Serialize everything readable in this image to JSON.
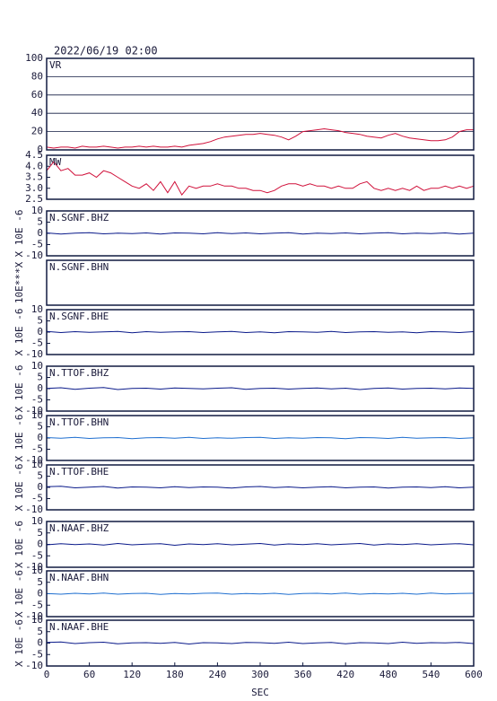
{
  "chart_data": [
    {
      "type": "line",
      "title": "2022/06/19 02:00",
      "label": "VR",
      "grid": true,
      "xlim": [
        0,
        600
      ],
      "ylim": [
        0,
        100
      ],
      "yticks": [
        0,
        20,
        40,
        60,
        80,
        100
      ],
      "x": [
        0,
        10,
        20,
        30,
        40,
        50,
        60,
        70,
        80,
        90,
        100,
        110,
        120,
        130,
        140,
        150,
        160,
        170,
        180,
        190,
        200,
        210,
        220,
        230,
        240,
        250,
        260,
        270,
        280,
        290,
        300,
        310,
        320,
        330,
        340,
        350,
        360,
        370,
        380,
        390,
        400,
        410,
        420,
        430,
        440,
        450,
        460,
        470,
        480,
        490,
        500,
        510,
        520,
        530,
        540,
        550,
        560,
        570,
        580,
        590,
        600
      ],
      "series": [
        {
          "color": "#d0103a",
          "values": [
            3,
            2,
            3,
            3,
            2,
            4,
            3,
            3,
            4,
            3,
            2,
            3,
            3,
            4,
            3,
            4,
            3,
            3,
            4,
            3,
            5,
            6,
            7,
            9,
            12,
            14,
            15,
            16,
            17,
            17,
            18,
            17,
            16,
            14,
            11,
            15,
            20,
            21,
            22,
            23,
            22,
            21,
            19,
            18,
            17,
            15,
            14,
            13,
            16,
            18,
            15,
            13,
            12,
            11,
            10,
            10,
            11,
            14,
            20,
            22,
            22
          ]
        }
      ]
    },
    {
      "type": "line",
      "label": "MW",
      "xlim": [
        0,
        600
      ],
      "ylim": [
        2.5,
        4.5
      ],
      "yticks": [
        {
          "value": 2.5,
          "label": "2.5"
        },
        {
          "value": 3,
          "label": "3.0"
        },
        {
          "value": 3.5,
          "label": "3.5"
        },
        {
          "value": 4,
          "label": "4.0"
        },
        {
          "value": 4.5,
          "label": "4.5"
        }
      ],
      "x": [
        0,
        10,
        20,
        30,
        40,
        50,
        60,
        70,
        80,
        90,
        100,
        110,
        120,
        130,
        140,
        150,
        160,
        170,
        180,
        190,
        200,
        210,
        220,
        230,
        240,
        250,
        260,
        270,
        280,
        290,
        300,
        310,
        320,
        330,
        340,
        350,
        360,
        370,
        380,
        390,
        400,
        410,
        420,
        430,
        440,
        450,
        460,
        470,
        480,
        490,
        500,
        510,
        520,
        530,
        540,
        550,
        560,
        570,
        580,
        590,
        600
      ],
      "series": [
        {
          "color": "#d0103a",
          "values": [
            3.8,
            4.2,
            3.8,
            3.9,
            3.6,
            3.6,
            3.7,
            3.5,
            3.8,
            3.7,
            3.5,
            3.3,
            3.1,
            3.0,
            3.2,
            2.9,
            3.3,
            2.8,
            3.3,
            2.7,
            3.1,
            3.0,
            3.1,
            3.1,
            3.2,
            3.1,
            3.1,
            3.0,
            3.0,
            2.9,
            2.9,
            2.8,
            2.9,
            3.1,
            3.2,
            3.2,
            3.1,
            3.2,
            3.1,
            3.1,
            3.0,
            3.1,
            3.0,
            3.0,
            3.2,
            3.3,
            3.0,
            2.9,
            3.0,
            2.9,
            3.0,
            2.9,
            3.1,
            2.9,
            3.0,
            3.0,
            3.1,
            3.0,
            3.1,
            3.0,
            3.1
          ]
        }
      ]
    },
    {
      "type": "line",
      "label": "N.SGNF.BHZ",
      "ylabel": "X 10E -6",
      "xlim": [
        0,
        600
      ],
      "ylim": [
        -10,
        10
      ],
      "yticks": [
        -10,
        -5,
        0,
        5,
        10
      ],
      "x": [
        0,
        20,
        40,
        60,
        80,
        100,
        120,
        140,
        160,
        180,
        200,
        220,
        240,
        260,
        280,
        300,
        320,
        340,
        360,
        380,
        400,
        420,
        440,
        460,
        480,
        500,
        520,
        540,
        560,
        580,
        600
      ],
      "series": [
        {
          "color": "#0a1a8a",
          "values": [
            0.2,
            -0.3,
            0.1,
            0.3,
            -0.2,
            0.1,
            -0.1,
            0.2,
            -0.3,
            0.2,
            0.1,
            -0.2,
            0.3,
            -0.1,
            0.2,
            -0.2,
            0.1,
            0.3,
            -0.3,
            0.1,
            -0.1,
            0.2,
            -0.2,
            0.1,
            0.3,
            -0.2,
            0.1,
            -0.1,
            0.2,
            -0.3,
            0.1
          ]
        }
      ]
    },
    {
      "type": "line",
      "label": "N.SGNF.BHN",
      "ylabel": "10E***X",
      "xlim": [
        0,
        600
      ],
      "x": [],
      "series": [
        {
          "color": "#1f6fd0",
          "values": []
        }
      ]
    },
    {
      "type": "line",
      "label": "N.SGNF.BHE",
      "ylabel": "X 10E -6",
      "xlim": [
        0,
        600
      ],
      "ylim": [
        -10,
        10
      ],
      "yticks": [
        -10,
        -5,
        0,
        5,
        10
      ],
      "x": [
        0,
        20,
        40,
        60,
        80,
        100,
        120,
        140,
        160,
        180,
        200,
        220,
        240,
        260,
        280,
        300,
        320,
        340,
        360,
        380,
        400,
        420,
        440,
        460,
        480,
        500,
        520,
        540,
        560,
        580,
        600
      ],
      "series": [
        {
          "color": "#0a1a8a",
          "values": [
            0.3,
            -0.2,
            0.2,
            -0.1,
            0.1,
            0.3,
            -0.3,
            0.2,
            -0.1,
            0.1,
            0.2,
            -0.2,
            0.1,
            0.3,
            -0.2,
            0.1,
            -0.3,
            0.2,
            0.1,
            -0.1,
            0.3,
            -0.2,
            0.1,
            0.2,
            -0.1,
            0.1,
            -0.3,
            0.2,
            0.1,
            -0.2,
            0.2
          ]
        }
      ]
    },
    {
      "type": "line",
      "label": "N.TTOF.BHZ",
      "ylabel": "X 10E -6",
      "xlim": [
        0,
        600
      ],
      "ylim": [
        -10,
        10
      ],
      "yticks": [
        -10,
        -5,
        0,
        5,
        10
      ],
      "x": [
        0,
        20,
        40,
        60,
        80,
        100,
        120,
        140,
        160,
        180,
        200,
        220,
        240,
        260,
        280,
        300,
        320,
        340,
        360,
        380,
        400,
        420,
        440,
        460,
        480,
        500,
        520,
        540,
        560,
        580,
        600
      ],
      "series": [
        {
          "color": "#0a1a8a",
          "values": [
            0.1,
            0.4,
            -0.3,
            0.2,
            0.5,
            -0.4,
            0.1,
            0.2,
            -0.2,
            0.3,
            0.1,
            -0.1,
            0.2,
            0.4,
            -0.3,
            0.1,
            0.2,
            -0.2,
            0.1,
            0.3,
            -0.1,
            0.2,
            -0.4,
            0.1,
            0.3,
            -0.2,
            0.1,
            0.2,
            -0.1,
            0.3,
            0.1
          ]
        }
      ]
    },
    {
      "type": "line",
      "label": "N.TTOF.BHN",
      "ylabel": "X 10E -6",
      "xlim": [
        0,
        600
      ],
      "ylim": [
        -10,
        10
      ],
      "yticks": [
        -10,
        -5,
        0,
        5,
        10
      ],
      "x": [
        0,
        20,
        40,
        60,
        80,
        100,
        120,
        140,
        160,
        180,
        200,
        220,
        240,
        260,
        280,
        300,
        320,
        340,
        360,
        380,
        400,
        420,
        440,
        460,
        480,
        500,
        520,
        540,
        560,
        580,
        600
      ],
      "series": [
        {
          "color": "#1f6fd0",
          "values": [
            0.2,
            -0.1,
            0.3,
            -0.2,
            0.1,
            0.2,
            -0.3,
            0.1,
            0.2,
            -0.1,
            0.3,
            -0.2,
            0.1,
            -0.1,
            0.2,
            0.3,
            -0.2,
            0.1,
            -0.1,
            0.2,
            0.1,
            -0.3,
            0.2,
            0.1,
            -0.2,
            0.3,
            -0.1,
            0.1,
            0.2,
            -0.2,
            0.1
          ]
        }
      ]
    },
    {
      "type": "line",
      "label": "N.TTOF.BHE",
      "ylabel": "X 10E -6",
      "xlim": [
        0,
        600
      ],
      "ylim": [
        -10,
        10
      ],
      "yticks": [
        -10,
        -5,
        0,
        5,
        10
      ],
      "x": [
        0,
        20,
        40,
        60,
        80,
        100,
        120,
        140,
        160,
        180,
        200,
        220,
        240,
        260,
        280,
        300,
        320,
        340,
        360,
        380,
        400,
        420,
        440,
        460,
        480,
        500,
        520,
        540,
        560,
        580,
        600
      ],
      "series": [
        {
          "color": "#0a1a8a",
          "values": [
            0.3,
            0.5,
            -0.2,
            0.1,
            0.4,
            -0.3,
            0.2,
            0.1,
            -0.2,
            0.3,
            -0.1,
            0.2,
            0.1,
            -0.3,
            0.2,
            0.4,
            -0.1,
            0.2,
            -0.2,
            0.1,
            0.3,
            -0.2,
            0.1,
            0.2,
            -0.3,
            0.1,
            0.2,
            -0.1,
            0.3,
            -0.2,
            0.1
          ]
        }
      ]
    },
    {
      "type": "line",
      "label": "N.NAAF.BHZ",
      "ylabel": "X 10E -6",
      "xlim": [
        0,
        600
      ],
      "ylim": [
        -10,
        10
      ],
      "yticks": [
        -10,
        -5,
        0,
        5,
        10
      ],
      "x": [
        0,
        20,
        40,
        60,
        80,
        100,
        120,
        140,
        160,
        180,
        200,
        220,
        240,
        260,
        280,
        300,
        320,
        340,
        360,
        380,
        400,
        420,
        440,
        460,
        480,
        500,
        520,
        540,
        560,
        580,
        600
      ],
      "series": [
        {
          "color": "#0a1a8a",
          "values": [
            -0.2,
            0.3,
            -0.1,
            0.2,
            -0.3,
            0.4,
            -0.2,
            0.1,
            0.3,
            -0.4,
            0.2,
            -0.1,
            0.3,
            -0.2,
            0.1,
            0.4,
            -0.3,
            0.2,
            -0.1,
            0.3,
            -0.2,
            0.1,
            0.4,
            -0.3,
            0.2,
            -0.1,
            0.3,
            -0.2,
            0.1,
            0.3,
            -0.2
          ]
        }
      ]
    },
    {
      "type": "line",
      "label": "N.NAAF.BHN",
      "ylabel": "X 10E -6",
      "xlim": [
        0,
        600
      ],
      "ylim": [
        -10,
        10
      ],
      "yticks": [
        -10,
        -5,
        0,
        5,
        10
      ],
      "x": [
        0,
        20,
        40,
        60,
        80,
        100,
        120,
        140,
        160,
        180,
        200,
        220,
        240,
        260,
        280,
        300,
        320,
        340,
        360,
        380,
        400,
        420,
        440,
        460,
        480,
        500,
        520,
        540,
        560,
        580,
        600
      ],
      "series": [
        {
          "color": "#1f6fd0",
          "values": [
            0.1,
            -0.2,
            0.2,
            -0.1,
            0.3,
            -0.2,
            0.1,
            0.2,
            -0.3,
            0.1,
            -0.1,
            0.2,
            0.3,
            -0.2,
            0.1,
            -0.1,
            0.2,
            -0.3,
            0.1,
            0.2,
            -0.1,
            0.3,
            -0.2,
            0.1,
            -0.1,
            0.2,
            -0.2,
            0.3,
            -0.1,
            0.1,
            0.2
          ]
        }
      ]
    },
    {
      "type": "line",
      "label": "N.NAAF.BHE",
      "ylabel": "X 10E -6",
      "xlabel": "SEC",
      "xlim": [
        0,
        600
      ],
      "xticks": [
        0,
        60,
        120,
        180,
        240,
        300,
        360,
        420,
        480,
        540,
        600
      ],
      "ylim": [
        -10,
        10
      ],
      "yticks": [
        -10,
        -5,
        0,
        5,
        10
      ],
      "x": [
        0,
        20,
        40,
        60,
        80,
        100,
        120,
        140,
        160,
        180,
        200,
        220,
        240,
        260,
        280,
        300,
        320,
        340,
        360,
        380,
        400,
        420,
        440,
        460,
        480,
        500,
        520,
        540,
        560,
        580,
        600
      ],
      "series": [
        {
          "color": "#0a1a8a",
          "values": [
            0.3,
            0.5,
            -0.2,
            0.2,
            0.4,
            -0.3,
            0.1,
            0.2,
            -0.1,
            0.3,
            -0.4,
            0.2,
            0.1,
            -0.2,
            0.3,
            0.2,
            -0.1,
            0.4,
            -0.2,
            0.1,
            0.3,
            -0.3,
            0.2,
            0.1,
            -0.2,
            0.4,
            -0.1,
            0.2,
            0.1,
            0.3,
            -0.2
          ]
        }
      ]
    }
  ]
}
